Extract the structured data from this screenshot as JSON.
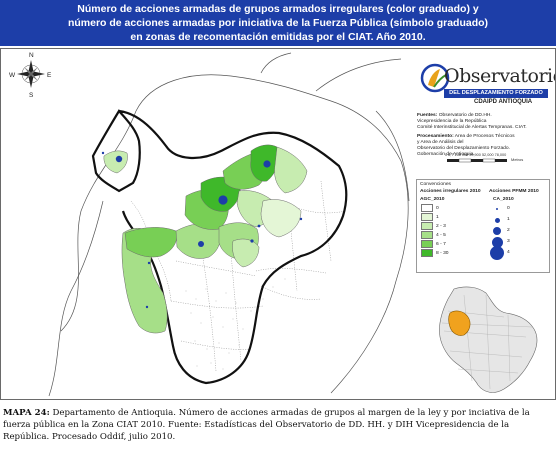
{
  "title": {
    "line1": "Número de acciones armadas de grupos armados irregulares (color graduado) y",
    "line2": "número de acciones armadas por iniciativa de la Fuerza Pública (símbolo graduado)",
    "line3": "en zonas de    recomentación emitidas por el CIAT. Año 2010."
  },
  "compass": {
    "n": "N",
    "s": "S",
    "e": "E",
    "w": "W"
  },
  "logo": {
    "word": "Observatorio",
    "banner": "DEL DESPLAZAMIENTO FORZADO",
    "sub": "CDAIPD ANTIOQUIA"
  },
  "sources": {
    "fuente_label": "Fuentes:",
    "fuente_1": "Observatorio de DD.HH.",
    "fuente_2": "Vicepresidencia de la República",
    "fuente_3": "Comité Interinstitucial de Alertas Tempranas. CIAT.",
    "proc_label": "Procesamiento:",
    "proc_1": "Area de Procesos Técnicos",
    "proc_2": "y Area de Análisis del",
    "proc_3": "Observatorio del Desplazamiento Forzado.",
    "proc_4": "Gobernación de Antioquia."
  },
  "scale": {
    "labels": "0 8,7 158 008 39,900 52,000 78,000",
    "unit": "Metros"
  },
  "legend": {
    "heading": "Convenciones",
    "col1_title": "Acciones irregulares 2010",
    "col2_title": "Acciones PFMM 2010",
    "col1_field": "AGC_2010",
    "col2_field": "CA_2010",
    "classes": [
      "0",
      "1",
      "2 - 3",
      "4 - 5",
      "6 - 7",
      "8 - 30"
    ],
    "class_colors": [
      "#ffffff",
      "#e4f6d6",
      "#c7ecb0",
      "#a6df88",
      "#78cf55",
      "#3fb82a"
    ],
    "symbols": [
      "0",
      "1",
      "2",
      "3",
      "4"
    ]
  },
  "caption": {
    "label": "MAPA 24:",
    "text": " Departamento de Antioquia. Número de acciones armadas de grupos al margen de la ley y por inciativa de la fuerza pública en la Zona CIAT 2010. Fuente: Estadísticas del Observatorio de DD. HH. y DIH Vicepresidencia de la República. Procesado Oddif, julio 2010."
  }
}
